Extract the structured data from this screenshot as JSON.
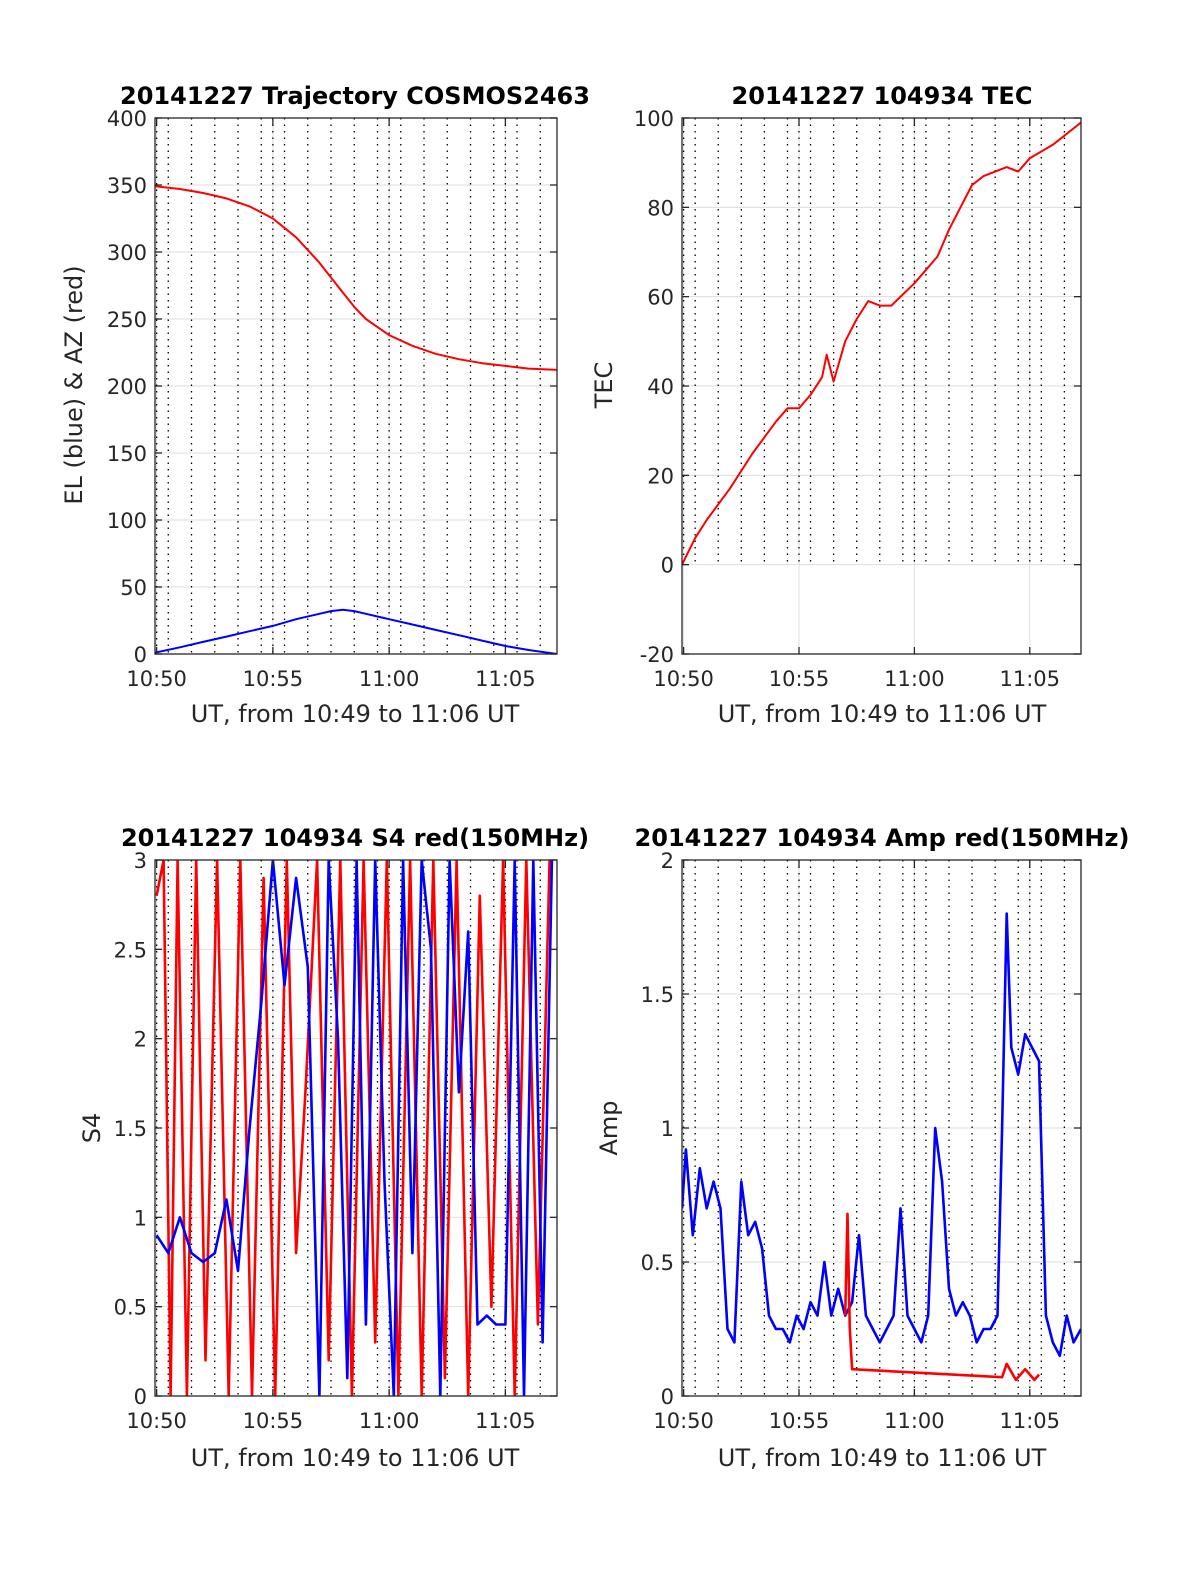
{
  "chart_data": [
    {
      "type": "line",
      "title": "20141227 Trajectory COSMOS2463",
      "xlabel": "UT, from 10:49 to 11:06 UT",
      "ylabel": "EL (blue) & AZ (red)",
      "x_ticks": [
        "10:50",
        "10:55",
        "11:00",
        "11:05"
      ],
      "x_tick_minutes": [
        50,
        55,
        60,
        65
      ],
      "x_range_minutes": [
        49.93,
        67.22
      ],
      "ylim": [
        0,
        400
      ],
      "y_ticks": [
        0,
        50,
        100,
        150,
        200,
        250,
        300,
        350,
        400
      ],
      "grid": true,
      "series": [
        {
          "color": "#ff0000",
          "x": [
            49.93,
            51,
            52,
            53,
            54,
            55,
            56,
            57,
            58,
            58.5,
            59,
            60,
            61,
            62,
            63,
            64,
            65,
            66,
            67.22
          ],
          "y": [
            349,
            347,
            344,
            340,
            334,
            325,
            311,
            292,
            270,
            259,
            250,
            238,
            230,
            224,
            220,
            217,
            215,
            213,
            212
          ]
        },
        {
          "color": "#0000ff",
          "x": [
            49.93,
            51,
            52,
            53,
            54,
            55,
            56,
            57,
            57.5,
            58,
            58.5,
            59,
            60,
            61,
            62,
            63,
            64,
            65,
            66,
            67.22
          ],
          "y": [
            1,
            5,
            9,
            13,
            17,
            21,
            26,
            30,
            32,
            33,
            32,
            30,
            26,
            22,
            18,
            14,
            10,
            6,
            3,
            0
          ]
        }
      ]
    },
    {
      "type": "line",
      "title": "20141227 104934 TEC",
      "xlabel": "UT, from 10:49 to 11:06 UT",
      "ylabel": "TEC",
      "x_ticks": [
        "10:50",
        "10:55",
        "11:00",
        "11:05"
      ],
      "x_tick_minutes": [
        50,
        55,
        60,
        65
      ],
      "x_range_minutes": [
        49.93,
        67.22
      ],
      "ylim": [
        -20,
        100
      ],
      "y_ticks": [
        -20,
        0,
        20,
        40,
        60,
        80,
        100
      ],
      "grid": true,
      "series": [
        {
          "color": "#ff0000",
          "x": [
            49.93,
            50.5,
            51,
            52,
            53,
            54,
            54.5,
            55,
            55.5,
            56,
            56.2,
            56.5,
            57,
            57.5,
            58,
            58.5,
            59,
            60,
            61,
            61.5,
            62,
            62.5,
            63,
            63.5,
            64,
            64.5,
            65,
            66,
            67.22
          ],
          "y": [
            0,
            6,
            10,
            17,
            25,
            32,
            35,
            35,
            38,
            42,
            47,
            41,
            50,
            55,
            59,
            58,
            58,
            63,
            69,
            75,
            80,
            85,
            87,
            88,
            89,
            88,
            91,
            94,
            99
          ]
        }
      ]
    },
    {
      "type": "line",
      "title": "20141227 104934 S4 red(150MHz)",
      "xlabel": "UT, from 10:49 to 11:06 UT",
      "ylabel": "S4",
      "x_ticks": [
        "10:50",
        "10:55",
        "11:00",
        "11:05"
      ],
      "x_tick_minutes": [
        50,
        55,
        60,
        65
      ],
      "x_range_minutes": [
        49.93,
        67.22
      ],
      "ylim": [
        0,
        3
      ],
      "y_ticks": [
        0,
        0.5,
        1,
        1.5,
        2,
        2.5,
        3
      ],
      "grid": true,
      "series": [
        {
          "color": "#ff0000",
          "x": [
            50.0,
            50.3,
            50.6,
            50.9,
            51.3,
            51.7,
            52.1,
            52.6,
            53.1,
            53.6,
            54.1,
            54.6,
            55.1,
            55.6,
            56.0,
            56.4,
            56.9,
            57.4,
            57.9,
            58.4,
            58.9,
            59.4,
            59.9,
            60.4,
            60.9,
            61.4,
            61.9,
            62.4,
            62.9,
            63.4,
            63.9,
            64.4,
            64.9,
            65.4,
            65.9,
            66.4,
            66.9
          ],
          "y": [
            2.8,
            3.0,
            0,
            3.0,
            0,
            3.0,
            0.2,
            3.0,
            0,
            3.0,
            0,
            2.9,
            0,
            3.0,
            0.8,
            1.7,
            3.0,
            0.2,
            3.0,
            0,
            3.0,
            0.3,
            3.0,
            0,
            3.0,
            0,
            3.0,
            0.1,
            3.0,
            0,
            2.8,
            0.5,
            3.0,
            0,
            3.0,
            0.4,
            3.0
          ]
        },
        {
          "color": "#0000ff",
          "x": [
            50.0,
            50.5,
            51.0,
            51.5,
            52.0,
            52.5,
            53.0,
            53.5,
            54.0,
            54.5,
            55.0,
            55.5,
            56.0,
            56.5,
            57.0,
            57.4,
            57.8,
            58.2,
            58.6,
            59.0,
            59.4,
            59.8,
            60.2,
            60.6,
            61.0,
            61.4,
            61.8,
            62.2,
            62.6,
            63.0,
            63.4,
            63.8,
            64.2,
            64.6,
            65.0,
            65.4,
            65.8,
            66.2,
            66.6,
            67.0
          ],
          "y": [
            0.9,
            0.8,
            1.0,
            0.8,
            0.75,
            0.8,
            1.1,
            0.7,
            1.5,
            2.2,
            3.0,
            2.3,
            2.9,
            2.4,
            0,
            3.0,
            2.0,
            0.1,
            3.0,
            0.4,
            3.0,
            1.2,
            0,
            3.0,
            0.8,
            3.0,
            2.5,
            0,
            3.0,
            1.7,
            2.6,
            0.4,
            0.45,
            0.4,
            0.4,
            3.0,
            0,
            3.0,
            0.3,
            3.0
          ]
        }
      ]
    },
    {
      "type": "line",
      "title": "20141227 104934 Amp red(150MHz)",
      "xlabel": "UT, from 10:49 to 11:06 UT",
      "ylabel": "Amp",
      "x_ticks": [
        "10:50",
        "10:55",
        "11:00",
        "11:05"
      ],
      "x_tick_minutes": [
        50,
        55,
        60,
        65
      ],
      "x_range_minutes": [
        49.93,
        67.22
      ],
      "ylim": [
        0,
        2
      ],
      "y_ticks": [
        0,
        0.5,
        1,
        1.5,
        2
      ],
      "grid": true,
      "series": [
        {
          "color": "#0000ff",
          "x": [
            49.93,
            50.1,
            50.4,
            50.7,
            51.0,
            51.3,
            51.6,
            51.9,
            52.2,
            52.5,
            52.8,
            53.1,
            53.4,
            53.7,
            54.0,
            54.3,
            54.6,
            54.9,
            55.2,
            55.5,
            55.8,
            56.1,
            56.4,
            56.7,
            57.0,
            57.3,
            57.6,
            57.9,
            58.2,
            58.5,
            58.8,
            59.1,
            59.4,
            59.7,
            60.0,
            60.3,
            60.6,
            60.9,
            61.2,
            61.5,
            61.8,
            62.1,
            62.4,
            62.7,
            63.0,
            63.3,
            63.6,
            63.8,
            64.0,
            64.2,
            64.5,
            64.8,
            65.1,
            65.4,
            65.7,
            66.0,
            66.3,
            66.6,
            66.9,
            67.22
          ],
          "y": [
            0.7,
            0.92,
            0.6,
            0.85,
            0.7,
            0.8,
            0.7,
            0.25,
            0.2,
            0.8,
            0.6,
            0.65,
            0.55,
            0.3,
            0.25,
            0.25,
            0.2,
            0.3,
            0.25,
            0.35,
            0.3,
            0.5,
            0.3,
            0.4,
            0.3,
            0.35,
            0.6,
            0.3,
            0.25,
            0.2,
            0.25,
            0.3,
            0.7,
            0.3,
            0.25,
            0.2,
            0.3,
            1.0,
            0.8,
            0.4,
            0.3,
            0.35,
            0.3,
            0.2,
            0.25,
            0.25,
            0.3,
            1.0,
            1.8,
            1.3,
            1.2,
            1.35,
            1.3,
            1.25,
            0.3,
            0.2,
            0.15,
            0.3,
            0.2,
            0.25
          ]
        },
        {
          "color": "#ff0000",
          "x": [
            57.0,
            57.1,
            57.2,
            57.3,
            63.8,
            64.0,
            64.4,
            64.8,
            65.2,
            65.4
          ],
          "y": [
            0.3,
            0.68,
            0.25,
            0.1,
            0.07,
            0.12,
            0.06,
            0.1,
            0.06,
            0.08
          ]
        }
      ]
    }
  ]
}
